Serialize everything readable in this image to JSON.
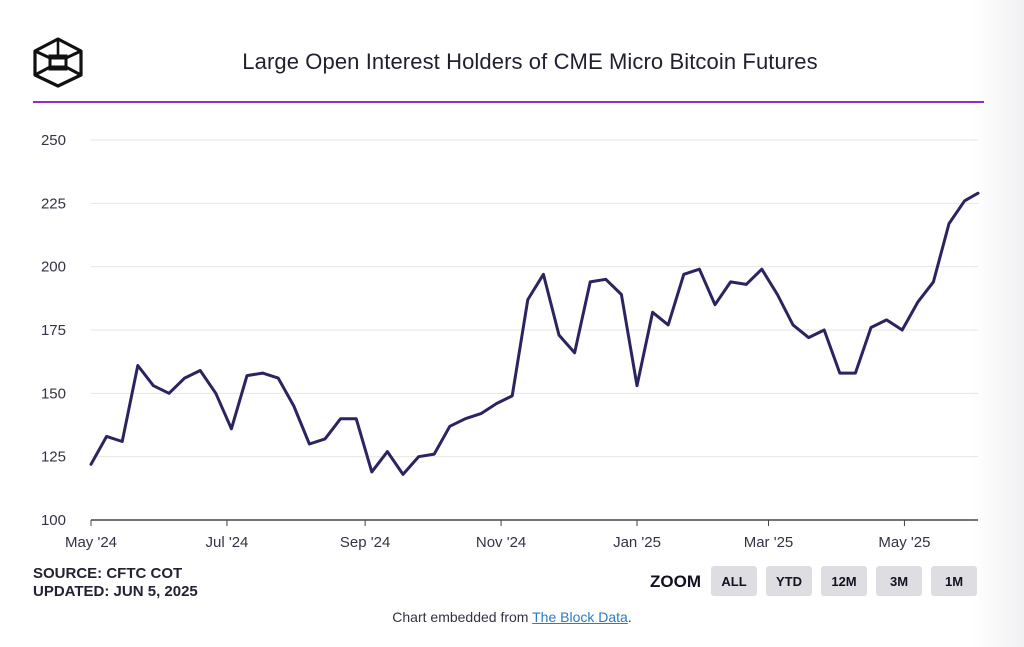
{
  "header": {
    "title": "Large Open Interest Holders of CME Micro Bitcoin Futures"
  },
  "colors": {
    "accent_line": "#8e2ad6",
    "series_line": "#2a2460",
    "gridline": "#e6e6e6",
    "button_bg": "#dedee2"
  },
  "chart_data": {
    "type": "line",
    "title": "Large Open Interest Holders of CME Micro Bitcoin Futures",
    "xlabel": "",
    "ylabel": "",
    "ylim": [
      100,
      250
    ],
    "yticks": [
      100,
      125,
      150,
      175,
      200,
      225,
      250
    ],
    "grid": true,
    "x_tick_labels": [
      "May '24",
      "Jul '24",
      "Sep '24",
      "Nov '24",
      "Jan '25",
      "Mar '25",
      "May '25"
    ],
    "x": [
      "2024-05-01",
      "2024-05-08",
      "2024-05-15",
      "2024-05-22",
      "2024-05-29",
      "2024-06-05",
      "2024-06-12",
      "2024-06-19",
      "2024-06-26",
      "2024-07-03",
      "2024-07-10",
      "2024-07-17",
      "2024-07-24",
      "2024-07-31",
      "2024-08-07",
      "2024-08-14",
      "2024-08-21",
      "2024-08-28",
      "2024-09-04",
      "2024-09-11",
      "2024-09-18",
      "2024-09-25",
      "2024-10-02",
      "2024-10-09",
      "2024-10-16",
      "2024-10-23",
      "2024-10-30",
      "2024-11-06",
      "2024-11-13",
      "2024-11-20",
      "2024-11-27",
      "2024-12-04",
      "2024-12-11",
      "2024-12-18",
      "2024-12-25",
      "2025-01-01",
      "2025-01-08",
      "2025-01-15",
      "2025-01-22",
      "2025-01-29",
      "2025-02-05",
      "2025-02-12",
      "2025-02-19",
      "2025-02-26",
      "2025-03-05",
      "2025-03-12",
      "2025-03-19",
      "2025-03-26",
      "2025-04-02",
      "2025-04-09",
      "2025-04-16",
      "2025-04-23",
      "2025-04-30",
      "2025-05-07",
      "2025-05-14",
      "2025-05-21",
      "2025-05-28",
      "2025-06-03"
    ],
    "series": [
      {
        "values": [
          122,
          133,
          131,
          161,
          153,
          150,
          156,
          159,
          150,
          136,
          157,
          158,
          156,
          145,
          130,
          132,
          140,
          140,
          119,
          127,
          118,
          125,
          126,
          137,
          140,
          142,
          146,
          149,
          187,
          197,
          173,
          166,
          194,
          195,
          189,
          153,
          182,
          177,
          197,
          199,
          185,
          194,
          193,
          199,
          189,
          177,
          172,
          175,
          158,
          158,
          176,
          179,
          175,
          186,
          194,
          217,
          226,
          229
        ]
      }
    ]
  },
  "source": {
    "line1": "SOURCE: CFTC COT",
    "line2": "UPDATED: JUN 5, 2025"
  },
  "zoom": {
    "label": "ZOOM",
    "buttons": [
      "ALL",
      "YTD",
      "12M",
      "3M",
      "1M"
    ]
  },
  "footer": {
    "prefix": "Chart embedded from ",
    "link_text": "The Block Data",
    "suffix": "."
  }
}
